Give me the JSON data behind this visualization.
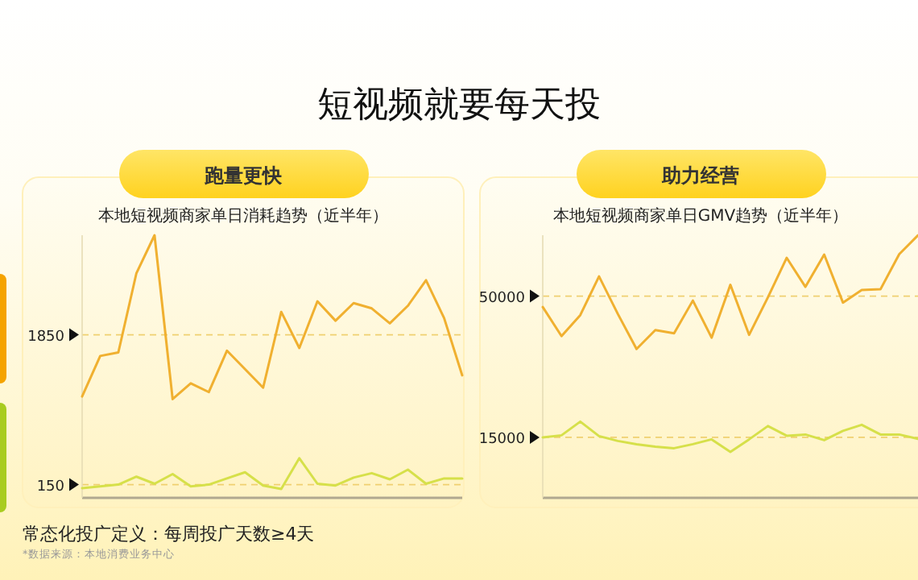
{
  "chart_data": [
    {
      "type": "line",
      "title": "跑量更快",
      "subtitle": "本地短视频商家单日消耗趋势（近半年）",
      "categories": [
        null,
        null,
        null,
        null,
        null,
        null,
        null,
        null,
        null,
        null,
        null,
        null,
        null,
        null,
        null,
        null,
        null,
        null,
        null,
        null,
        null,
        null
      ],
      "series": [
        {
          "color": "#f0b030",
          "values": [
            1150,
            1610,
            1650,
            2550,
            2980,
            1120,
            1300,
            1200,
            1670,
            1460,
            1250,
            2110,
            1700,
            2230,
            2010,
            2210,
            2150,
            1980,
            2180,
            2470,
            2040,
            1390
          ]
        },
        {
          "color": "#d6e04a",
          "values": [
            110,
            130,
            150,
            240,
            160,
            270,
            130,
            150,
            220,
            290,
            140,
            100,
            450,
            160,
            140,
            230,
            280,
            210,
            320,
            160,
            220,
            220
          ]
        }
      ],
      "ylim": [
        0,
        2980
      ],
      "yticks": [
        150,
        1850
      ],
      "grid": "y",
      "annotations": [
        "短视频就要每天投",
        "常态化投广定义：每周投广天数≥4天",
        "*数据来源：本地消费业务中心"
      ]
    },
    {
      "type": "line",
      "title": "助力经营",
      "subtitle": "本地短视频商家单日GMV趋势（近半年）",
      "categories": [
        null,
        null,
        null,
        null,
        null,
        null,
        null,
        null,
        null,
        null,
        null,
        null,
        null,
        null,
        null,
        null,
        null,
        null,
        null,
        null,
        null
      ],
      "series": [
        {
          "color": "#f0b030",
          "values": [
            47300,
            40100,
            45300,
            54900,
            45600,
            36900,
            41600,
            40800,
            48900,
            39700,
            52800,
            40400,
            49700,
            59500,
            52300,
            60300,
            48400,
            51500,
            51700,
            60400,
            65100
          ]
        },
        {
          "color": "#d6e04a",
          "values": [
            15000,
            15500,
            18900,
            15300,
            14100,
            13300,
            12700,
            12300,
            13300,
            14500,
            11400,
            14500,
            17800,
            15400,
            15700,
            14300,
            16600,
            18100,
            15700,
            15700,
            14600
          ]
        }
      ],
      "ylim": [
        0,
        65100
      ],
      "yticks": [
        15000,
        50000
      ],
      "grid": "y"
    }
  ]
}
